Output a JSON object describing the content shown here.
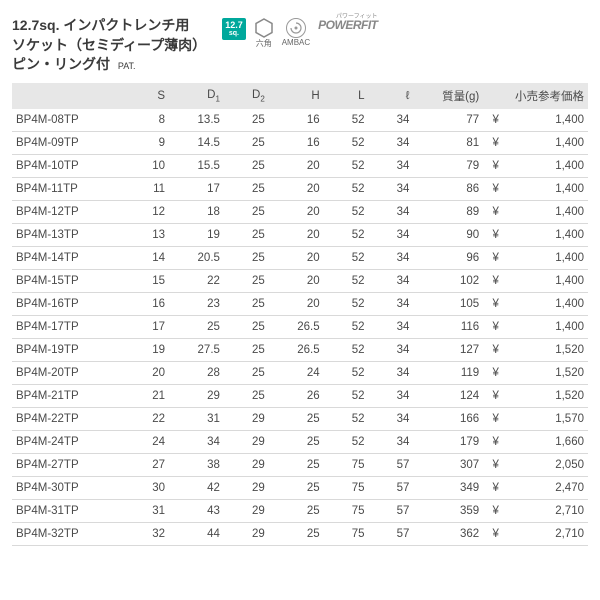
{
  "header": {
    "title_line1": "12.7sq. インパクトレンチ用",
    "title_line2": "ソケット（セミディープ薄肉）",
    "title_line3": "ピン・リング付",
    "pat": "PAT.",
    "sq_badge_num": "12.7",
    "sq_badge_unit": "sq.",
    "hex_label": "六角",
    "ambac_label": "AMBAC",
    "powerfit_text": "POWERFIT",
    "powerfit_ruby": "パワーフィット"
  },
  "columns": {
    "code": "",
    "s": "S",
    "d1": "D",
    "d1_sub": "1",
    "d2": "D",
    "d2_sub": "2",
    "h": "H",
    "l": "L",
    "ell": "ℓ",
    "mass": "質量(g)",
    "price": "小売参考価格"
  },
  "yen": "¥",
  "rows": [
    {
      "code": "BP4M-08TP",
      "s": "8",
      "d1": "13.5",
      "d2": "25",
      "h": "16",
      "l": "52",
      "ell": "34",
      "mass": "77",
      "price": "1,400"
    },
    {
      "code": "BP4M-09TP",
      "s": "9",
      "d1": "14.5",
      "d2": "25",
      "h": "16",
      "l": "52",
      "ell": "34",
      "mass": "81",
      "price": "1,400"
    },
    {
      "code": "BP4M-10TP",
      "s": "10",
      "d1": "15.5",
      "d2": "25",
      "h": "20",
      "l": "52",
      "ell": "34",
      "mass": "79",
      "price": "1,400"
    },
    {
      "code": "BP4M-11TP",
      "s": "11",
      "d1": "17",
      "d2": "25",
      "h": "20",
      "l": "52",
      "ell": "34",
      "mass": "86",
      "price": "1,400"
    },
    {
      "code": "BP4M-12TP",
      "s": "12",
      "d1": "18",
      "d2": "25",
      "h": "20",
      "l": "52",
      "ell": "34",
      "mass": "89",
      "price": "1,400"
    },
    {
      "code": "BP4M-13TP",
      "s": "13",
      "d1": "19",
      "d2": "25",
      "h": "20",
      "l": "52",
      "ell": "34",
      "mass": "90",
      "price": "1,400"
    },
    {
      "code": "BP4M-14TP",
      "s": "14",
      "d1": "20.5",
      "d2": "25",
      "h": "20",
      "l": "52",
      "ell": "34",
      "mass": "96",
      "price": "1,400"
    },
    {
      "code": "BP4M-15TP",
      "s": "15",
      "d1": "22",
      "d2": "25",
      "h": "20",
      "l": "52",
      "ell": "34",
      "mass": "102",
      "price": "1,400"
    },
    {
      "code": "BP4M-16TP",
      "s": "16",
      "d1": "23",
      "d2": "25",
      "h": "20",
      "l": "52",
      "ell": "34",
      "mass": "105",
      "price": "1,400"
    },
    {
      "code": "BP4M-17TP",
      "s": "17",
      "d1": "25",
      "d2": "25",
      "h": "26.5",
      "l": "52",
      "ell": "34",
      "mass": "116",
      "price": "1,400"
    },
    {
      "code": "BP4M-19TP",
      "s": "19",
      "d1": "27.5",
      "d2": "25",
      "h": "26.5",
      "l": "52",
      "ell": "34",
      "mass": "127",
      "price": "1,520"
    },
    {
      "code": "BP4M-20TP",
      "s": "20",
      "d1": "28",
      "d2": "25",
      "h": "24",
      "l": "52",
      "ell": "34",
      "mass": "119",
      "price": "1,520"
    },
    {
      "code": "BP4M-21TP",
      "s": "21",
      "d1": "29",
      "d2": "25",
      "h": "26",
      "l": "52",
      "ell": "34",
      "mass": "124",
      "price": "1,520"
    },
    {
      "code": "BP4M-22TP",
      "s": "22",
      "d1": "31",
      "d2": "29",
      "h": "25",
      "l": "52",
      "ell": "34",
      "mass": "166",
      "price": "1,570"
    },
    {
      "code": "BP4M-24TP",
      "s": "24",
      "d1": "34",
      "d2": "29",
      "h": "25",
      "l": "52",
      "ell": "34",
      "mass": "179",
      "price": "1,660"
    },
    {
      "code": "BP4M-27TP",
      "s": "27",
      "d1": "38",
      "d2": "29",
      "h": "25",
      "l": "75",
      "ell": "57",
      "mass": "307",
      "price": "2,050"
    },
    {
      "code": "BP4M-30TP",
      "s": "30",
      "d1": "42",
      "d2": "29",
      "h": "25",
      "l": "75",
      "ell": "57",
      "mass": "349",
      "price": "2,470"
    },
    {
      "code": "BP4M-31TP",
      "s": "31",
      "d1": "43",
      "d2": "29",
      "h": "25",
      "l": "75",
      "ell": "57",
      "mass": "359",
      "price": "2,710"
    },
    {
      "code": "BP4M-32TP",
      "s": "32",
      "d1": "44",
      "d2": "29",
      "h": "25",
      "l": "75",
      "ell": "57",
      "mass": "362",
      "price": "2,710"
    }
  ]
}
